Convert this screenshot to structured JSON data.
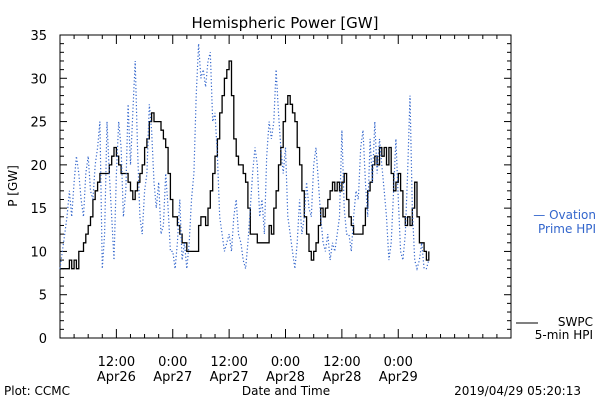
{
  "chart_data": {
    "type": "line",
    "title": "Hemispheric Power [GW]",
    "ylabel": "P [GW]",
    "xlabel": "Date and Time",
    "ylim": [
      0,
      35
    ],
    "xlim": [
      0,
      96
    ],
    "grid": false,
    "y_ticks": [
      0,
      5,
      10,
      15,
      20,
      25,
      30,
      35
    ],
    "x_ticks": [
      {
        "x": 12,
        "time": "12:00",
        "date": "Apr26"
      },
      {
        "x": 24,
        "time": "0:00",
        "date": "Apr27"
      },
      {
        "x": 36,
        "time": "12:00",
        "date": "Apr27"
      },
      {
        "x": 48,
        "time": "0:00",
        "date": "Apr28"
      },
      {
        "x": 60,
        "time": "12:00",
        "date": "Apr28"
      },
      {
        "x": 72,
        "time": "0:00",
        "date": "Apr29"
      }
    ],
    "x_unit_note": "",
    "series": [
      {
        "name": "SWPC 5-min HPI",
        "color": "#000000",
        "style": "solid-step",
        "points": [
          [
            0,
            8
          ],
          [
            1.5,
            8
          ],
          [
            2,
            9
          ],
          [
            2.5,
            8
          ],
          [
            3,
            9
          ],
          [
            3.5,
            8
          ],
          [
            4,
            10
          ],
          [
            5,
            11
          ],
          [
            5.5,
            12
          ],
          [
            6,
            13
          ],
          [
            6.5,
            14
          ],
          [
            7,
            16
          ],
          [
            7.5,
            17
          ],
          [
            8,
            18
          ],
          [
            8.5,
            19
          ],
          [
            9,
            19
          ],
          [
            10,
            19
          ],
          [
            10.5,
            20
          ],
          [
            11,
            21
          ],
          [
            11.5,
            22
          ],
          [
            12,
            21
          ],
          [
            12.5,
            20
          ],
          [
            13,
            19
          ],
          [
            14,
            19
          ],
          [
            14.5,
            18
          ],
          [
            15,
            17
          ],
          [
            15.5,
            16
          ],
          [
            16,
            17
          ],
          [
            16.5,
            18
          ],
          [
            17,
            19
          ],
          [
            17.5,
            20
          ],
          [
            18,
            22
          ],
          [
            18.5,
            23
          ],
          [
            19,
            25
          ],
          [
            19.5,
            26
          ],
          [
            20,
            25
          ],
          [
            21,
            25
          ],
          [
            21.5,
            24
          ],
          [
            22,
            23
          ],
          [
            22.5,
            22
          ],
          [
            23,
            19
          ],
          [
            23.5,
            16
          ],
          [
            24,
            14
          ],
          [
            25,
            13
          ],
          [
            25.5,
            12
          ],
          [
            26,
            11
          ],
          [
            27,
            10
          ],
          [
            28,
            10
          ],
          [
            29,
            10
          ],
          [
            29.5,
            13
          ],
          [
            30,
            14
          ],
          [
            30.5,
            14
          ],
          [
            31,
            13
          ],
          [
            31.5,
            15
          ],
          [
            32,
            17
          ],
          [
            32.5,
            19
          ],
          [
            33,
            21
          ],
          [
            33.5,
            23
          ],
          [
            34,
            26
          ],
          [
            34.5,
            28
          ],
          [
            35,
            30
          ],
          [
            35.5,
            31
          ],
          [
            36,
            32
          ],
          [
            36.5,
            28
          ],
          [
            37,
            23
          ],
          [
            37.5,
            21
          ],
          [
            38,
            20
          ],
          [
            39,
            19
          ],
          [
            39.5,
            18
          ],
          [
            40,
            15
          ],
          [
            40.5,
            12
          ],
          [
            41,
            12
          ],
          [
            42,
            11
          ],
          [
            43,
            11
          ],
          [
            44,
            11
          ],
          [
            44.5,
            13
          ],
          [
            45,
            12
          ],
          [
            45.5,
            15
          ],
          [
            46,
            17
          ],
          [
            46.5,
            20
          ],
          [
            47,
            22
          ],
          [
            47.5,
            25
          ],
          [
            48,
            27
          ],
          [
            48.5,
            28
          ],
          [
            49,
            27
          ],
          [
            49.5,
            26
          ],
          [
            50,
            25
          ],
          [
            50.5,
            22
          ],
          [
            51,
            20
          ],
          [
            51.5,
            17
          ],
          [
            52,
            14
          ],
          [
            52.5,
            12
          ],
          [
            53,
            10
          ],
          [
            53.5,
            9
          ],
          [
            54,
            10
          ],
          [
            54.5,
            11
          ],
          [
            55,
            13
          ],
          [
            55.5,
            15
          ],
          [
            56,
            14
          ],
          [
            56.5,
            15
          ],
          [
            57,
            16
          ],
          [
            57.5,
            17
          ],
          [
            58,
            18
          ],
          [
            58.5,
            17
          ],
          [
            59,
            18
          ],
          [
            59.5,
            17
          ],
          [
            60,
            18
          ],
          [
            60.5,
            19
          ],
          [
            61,
            16
          ],
          [
            61.5,
            14
          ],
          [
            62,
            13
          ],
          [
            62.5,
            12
          ],
          [
            63,
            12
          ],
          [
            64,
            12
          ],
          [
            64.5,
            13
          ],
          [
            65,
            15
          ],
          [
            65.5,
            17
          ],
          [
            66,
            18
          ],
          [
            66.5,
            20
          ],
          [
            67,
            21
          ],
          [
            67.5,
            20
          ],
          [
            68,
            22
          ],
          [
            68.5,
            21
          ],
          [
            69,
            22
          ],
          [
            69.5,
            20
          ],
          [
            70,
            22
          ],
          [
            70.5,
            19
          ],
          [
            71,
            17
          ],
          [
            71.5,
            18
          ],
          [
            72,
            19
          ],
          [
            72.5,
            17
          ],
          [
            73,
            14
          ],
          [
            73.5,
            13
          ],
          [
            74,
            14
          ],
          [
            74.5,
            13
          ],
          [
            75,
            15
          ],
          [
            75.5,
            18
          ],
          [
            76,
            14
          ],
          [
            76.5,
            11
          ],
          [
            77,
            11
          ],
          [
            77.5,
            10
          ],
          [
            78,
            9
          ],
          [
            78.5,
            10
          ]
        ]
      },
      {
        "name": "Ovation Prime HPI",
        "color": "#3366cc",
        "style": "dotted",
        "points": [
          [
            0,
            8
          ],
          [
            1,
            12
          ],
          [
            1.5,
            14
          ],
          [
            2,
            17
          ],
          [
            2.5,
            14
          ],
          [
            3,
            18
          ],
          [
            3.5,
            21
          ],
          [
            4,
            19
          ],
          [
            4.5,
            16
          ],
          [
            5,
            14
          ],
          [
            5.5,
            19
          ],
          [
            6,
            21
          ],
          [
            6.5,
            17
          ],
          [
            7,
            16
          ],
          [
            7.5,
            20
          ],
          [
            8,
            22
          ],
          [
            8.5,
            25
          ],
          [
            9,
            8
          ],
          [
            9.5,
            12
          ],
          [
            10,
            25
          ],
          [
            10.5,
            19
          ],
          [
            11,
            14
          ],
          [
            11.5,
            9
          ],
          [
            12,
            19
          ],
          [
            12.5,
            25
          ],
          [
            13,
            22
          ],
          [
            13.5,
            14
          ],
          [
            14,
            17
          ],
          [
            14.5,
            27
          ],
          [
            15,
            20
          ],
          [
            15.5,
            26
          ],
          [
            16,
            32
          ],
          [
            16.5,
            22
          ],
          [
            17,
            14
          ],
          [
            17.5,
            12
          ],
          [
            18,
            17
          ],
          [
            18.5,
            19
          ],
          [
            19,
            27
          ],
          [
            19.5,
            24
          ],
          [
            20,
            18
          ],
          [
            20.5,
            15
          ],
          [
            21,
            18
          ],
          [
            21.5,
            12
          ],
          [
            22,
            13
          ],
          [
            22.5,
            19
          ],
          [
            23,
            15
          ],
          [
            23.5,
            10
          ],
          [
            24,
            10
          ],
          [
            24.5,
            8
          ],
          [
            25,
            11
          ],
          [
            25.5,
            16
          ],
          [
            26,
            9
          ],
          [
            26.5,
            11
          ],
          [
            27,
            8
          ],
          [
            27.5,
            11
          ],
          [
            28,
            16
          ],
          [
            28.5,
            19
          ],
          [
            29,
            28
          ],
          [
            29.5,
            34
          ],
          [
            30,
            30
          ],
          [
            30.5,
            31
          ],
          [
            31,
            29
          ],
          [
            31.5,
            32
          ],
          [
            32,
            33
          ],
          [
            32.5,
            25
          ],
          [
            33,
            26
          ],
          [
            33.5,
            21
          ],
          [
            34,
            14
          ],
          [
            34.5,
            12
          ],
          [
            35,
            10
          ],
          [
            35.5,
            11
          ],
          [
            36,
            12
          ],
          [
            36.5,
            10
          ],
          [
            37,
            14
          ],
          [
            37.5,
            16
          ],
          [
            38,
            12
          ],
          [
            38.5,
            11
          ],
          [
            39,
            9
          ],
          [
            39.5,
            8
          ],
          [
            40,
            11
          ],
          [
            40.5,
            15
          ],
          [
            41,
            19
          ],
          [
            41.5,
            22
          ],
          [
            42,
            20
          ],
          [
            42.5,
            14
          ],
          [
            43,
            16
          ],
          [
            43.5,
            12
          ],
          [
            44,
            21
          ],
          [
            44.5,
            25
          ],
          [
            45,
            23
          ],
          [
            45.5,
            25
          ],
          [
            46,
            31
          ],
          [
            46.5,
            26
          ],
          [
            47,
            22
          ],
          [
            47.5,
            19
          ],
          [
            48,
            22
          ],
          [
            48.5,
            14
          ],
          [
            49,
            12
          ],
          [
            49.5,
            10
          ],
          [
            50,
            8
          ],
          [
            50.5,
            11
          ],
          [
            51,
            16
          ],
          [
            51.5,
            12
          ],
          [
            52,
            14
          ],
          [
            52.5,
            18
          ],
          [
            53,
            15
          ],
          [
            53.5,
            14
          ],
          [
            54,
            20
          ],
          [
            54.5,
            22
          ],
          [
            55,
            18
          ],
          [
            55.5,
            14
          ],
          [
            56,
            11
          ],
          [
            56.5,
            10
          ],
          [
            57,
            12
          ],
          [
            57.5,
            9
          ],
          [
            58,
            11
          ],
          [
            58.5,
            10
          ],
          [
            59,
            12
          ],
          [
            59.5,
            14
          ],
          [
            60,
            24
          ],
          [
            60.5,
            15
          ],
          [
            61,
            12
          ],
          [
            61.5,
            12
          ],
          [
            62,
            10
          ],
          [
            62.5,
            14
          ],
          [
            63,
            17
          ],
          [
            63.5,
            16
          ],
          [
            64,
            22
          ],
          [
            64.5,
            24
          ],
          [
            65,
            18
          ],
          [
            65.5,
            14
          ],
          [
            66,
            23
          ],
          [
            66.5,
            18
          ],
          [
            67,
            25
          ],
          [
            67.5,
            19
          ],
          [
            68,
            23
          ],
          [
            68.5,
            20
          ],
          [
            69,
            17
          ],
          [
            69.5,
            14
          ],
          [
            70,
            9
          ],
          [
            70.5,
            11
          ],
          [
            71,
            17
          ],
          [
            71.5,
            23
          ],
          [
            72,
            16
          ],
          [
            72.5,
            10
          ],
          [
            73,
            9
          ],
          [
            73.5,
            12
          ],
          [
            74,
            19
          ],
          [
            74.5,
            28
          ],
          [
            75,
            15
          ],
          [
            75.5,
            9
          ],
          [
            76,
            8
          ],
          [
            76.5,
            9
          ],
          [
            77,
            11
          ],
          [
            77.5,
            8
          ],
          [
            78,
            8
          ],
          [
            78.5,
            9
          ]
        ]
      }
    ],
    "legend": {
      "placement": "right",
      "items": [
        {
          "line1": "— Ovation",
          "line2": "Prime HPI",
          "color": "#3366cc"
        },
        {
          "line1": "SWPC",
          "line2": "5-min HPI",
          "color": "#000000"
        }
      ]
    }
  },
  "footer": {
    "plot_credit": "Plot: CCMC",
    "timestamp": "2019/04/29 05:20:13"
  }
}
